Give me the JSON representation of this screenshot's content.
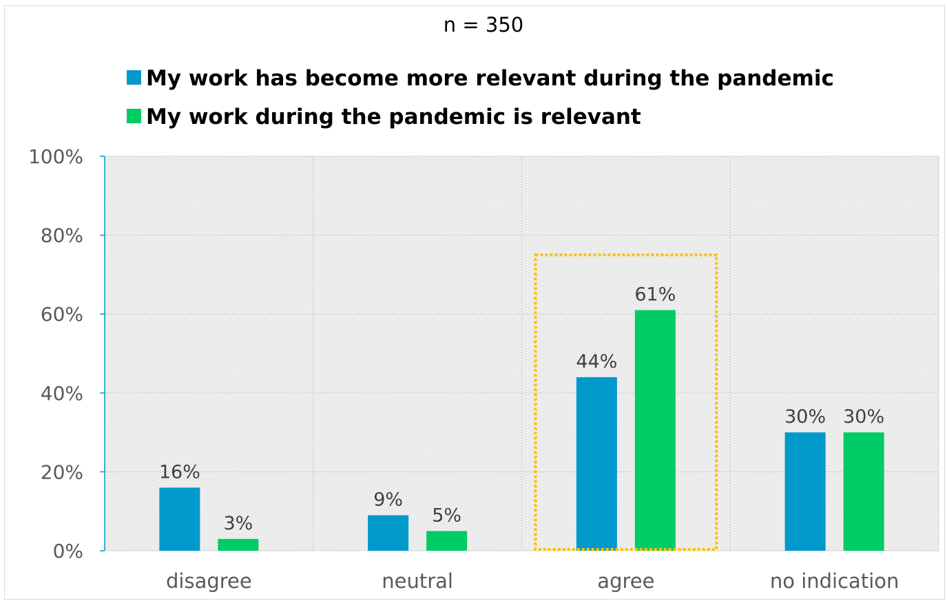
{
  "chart_data": {
    "type": "bar",
    "subtitle": "n = 350",
    "categories": [
      "disagree",
      "neutral",
      "agree",
      "no indication"
    ],
    "series": [
      {
        "name": "My work has become more relevant during the pandemic",
        "color": "#0099cc",
        "values": [
          16,
          9,
          44,
          30
        ],
        "labels": [
          "16%",
          "9%",
          "44%",
          "30%"
        ]
      },
      {
        "name": "My work during the pandemic is relevant",
        "color": "#00cc66",
        "values": [
          3,
          5,
          61,
          30
        ],
        "labels": [
          "3%",
          "5%",
          "61%",
          "30%"
        ]
      }
    ],
    "ylim": [
      0,
      100
    ],
    "yticks": [
      "0%",
      "20%",
      "40%",
      "60%",
      "80%",
      "100%"
    ],
    "grid": true,
    "legend_position": "top",
    "highlight": {
      "category": "agree",
      "color": "#ffc000",
      "style": "dotted",
      "top_value": 75
    }
  }
}
